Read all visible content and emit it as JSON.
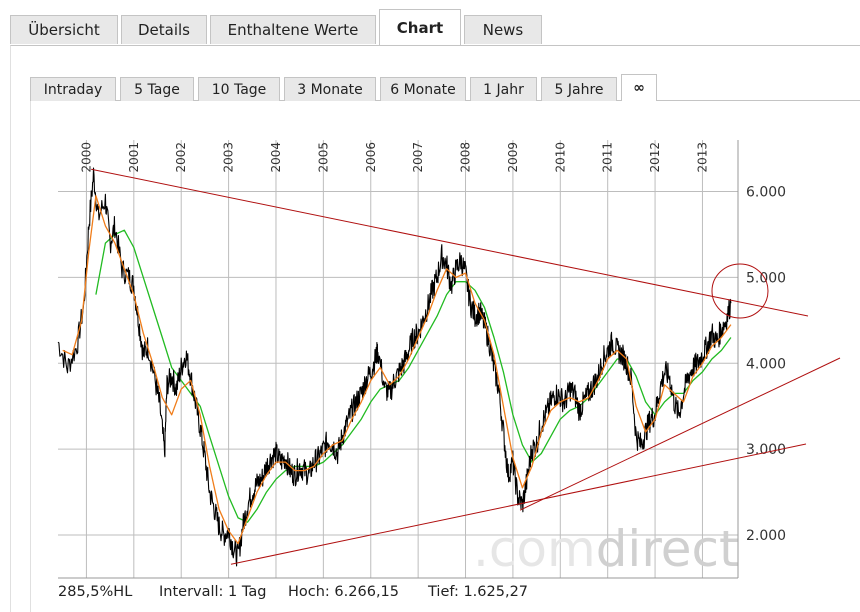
{
  "tabs": [
    {
      "label": "Übersicht",
      "active": false
    },
    {
      "label": "Details",
      "active": false
    },
    {
      "label": "Enthaltene Werte",
      "active": false
    },
    {
      "label": "Chart",
      "active": true
    },
    {
      "label": "News",
      "active": false
    }
  ],
  "subtabs": [
    {
      "label": "Intraday",
      "active": false
    },
    {
      "label": "5 Tage",
      "active": false
    },
    {
      "label": "10 Tage",
      "active": false
    },
    {
      "label": "3 Monate",
      "active": false
    },
    {
      "label": "6 Monate",
      "active": false
    },
    {
      "label": "1 Jahr",
      "active": false
    },
    {
      "label": "5 Jahre",
      "active": false
    },
    {
      "label": "∞",
      "active": true
    }
  ],
  "stats": {
    "hl": "285,5%HL",
    "interval": "Intervall: 1 Tag",
    "high": "Hoch:  6.266,15",
    "low": "Tief:  1.625,27"
  },
  "watermark": {
    "light": ".com",
    "dark": "direct"
  },
  "colors": {
    "price": "#000000",
    "ma_short": "#f07d1a",
    "ma_long": "#22bb22",
    "trendline": "#b01010",
    "grid": "#bdbdbd"
  },
  "chart_data": {
    "type": "line",
    "x_labels": [
      "2000",
      "2001",
      "2002",
      "2003",
      "2004",
      "2005",
      "2006",
      "2007",
      "2008",
      "2009",
      "2010",
      "2011",
      "2012",
      "2013"
    ],
    "y_ticks": [
      2000,
      3000,
      4000,
      5000,
      6000
    ],
    "y_tick_labels": [
      "2.000",
      "3.000",
      "4.000",
      "5.000",
      "6.000"
    ],
    "ylim": [
      1500,
      6600
    ],
    "xlim": [
      1999.4,
      2013.75
    ],
    "grid": true,
    "series": [
      {
        "role": "price",
        "points": [
          [
            1999.4,
            4250
          ],
          [
            1999.6,
            3950
          ],
          [
            1999.8,
            4200
          ],
          [
            1999.95,
            4700
          ],
          [
            2000.05,
            5600
          ],
          [
            2000.15,
            6200
          ],
          [
            2000.25,
            5700
          ],
          [
            2000.4,
            5900
          ],
          [
            2000.5,
            5400
          ],
          [
            2000.6,
            5600
          ],
          [
            2000.75,
            5100
          ],
          [
            2000.9,
            5000
          ],
          [
            2001.0,
            4900
          ],
          [
            2001.1,
            4500
          ],
          [
            2001.2,
            4100
          ],
          [
            2001.3,
            4200
          ],
          [
            2001.45,
            3800
          ],
          [
            2001.55,
            3500
          ],
          [
            2001.65,
            2950
          ],
          [
            2001.7,
            3750
          ],
          [
            2001.8,
            3850
          ],
          [
            2001.9,
            3700
          ],
          [
            2002.0,
            3950
          ],
          [
            2002.1,
            4100
          ],
          [
            2002.2,
            3850
          ],
          [
            2002.3,
            3550
          ],
          [
            2002.4,
            3250
          ],
          [
            2002.5,
            2900
          ],
          [
            2002.6,
            2500
          ],
          [
            2002.7,
            2300
          ],
          [
            2002.8,
            2100
          ],
          [
            2002.9,
            2000
          ],
          [
            2003.0,
            2050
          ],
          [
            2003.1,
            1850
          ],
          [
            2003.2,
            1750
          ],
          [
            2003.3,
            2100
          ],
          [
            2003.4,
            2350
          ],
          [
            2003.5,
            2500
          ],
          [
            2003.6,
            2600
          ],
          [
            2003.7,
            2650
          ],
          [
            2003.8,
            2800
          ],
          [
            2003.9,
            2900
          ],
          [
            2004.0,
            2950
          ],
          [
            2004.1,
            2850
          ],
          [
            2004.2,
            2900
          ],
          [
            2004.3,
            2750
          ],
          [
            2004.4,
            2700
          ],
          [
            2004.5,
            2800
          ],
          [
            2004.6,
            2750
          ],
          [
            2004.7,
            2700
          ],
          [
            2004.8,
            2850
          ],
          [
            2004.9,
            2900
          ],
          [
            2005.0,
            3000
          ],
          [
            2005.1,
            3100
          ],
          [
            2005.2,
            3050
          ],
          [
            2005.3,
            2950
          ],
          [
            2005.4,
            3150
          ],
          [
            2005.5,
            3300
          ],
          [
            2005.6,
            3450
          ],
          [
            2005.7,
            3550
          ],
          [
            2005.8,
            3650
          ],
          [
            2005.9,
            3800
          ],
          [
            2006.0,
            3900
          ],
          [
            2006.1,
            4050
          ],
          [
            2006.15,
            4150
          ],
          [
            2006.3,
            3700
          ],
          [
            2006.4,
            3650
          ],
          [
            2006.5,
            3800
          ],
          [
            2006.6,
            3900
          ],
          [
            2006.7,
            4000
          ],
          [
            2006.8,
            4150
          ],
          [
            2006.9,
            4300
          ],
          [
            2007.0,
            4350
          ],
          [
            2007.1,
            4500
          ],
          [
            2007.2,
            4650
          ],
          [
            2007.3,
            4850
          ],
          [
            2007.4,
            5000
          ],
          [
            2007.5,
            5250
          ],
          [
            2007.6,
            5150
          ],
          [
            2007.7,
            4900
          ],
          [
            2007.8,
            5100
          ],
          [
            2007.9,
            5200
          ],
          [
            2008.0,
            5050
          ],
          [
            2008.1,
            4700
          ],
          [
            2008.2,
            4550
          ],
          [
            2008.3,
            4600
          ],
          [
            2008.4,
            4450
          ],
          [
            2008.5,
            4250
          ],
          [
            2008.6,
            3950
          ],
          [
            2008.7,
            3700
          ],
          [
            2008.8,
            3200
          ],
          [
            2008.9,
            2700
          ],
          [
            2009.0,
            2850
          ],
          [
            2009.1,
            2450
          ],
          [
            2009.2,
            2350
          ],
          [
            2009.3,
            2650
          ],
          [
            2009.4,
            3000
          ],
          [
            2009.5,
            3050
          ],
          [
            2009.6,
            3300
          ],
          [
            2009.7,
            3400
          ],
          [
            2009.8,
            3550
          ],
          [
            2009.9,
            3650
          ],
          [
            2010.0,
            3600
          ],
          [
            2010.1,
            3550
          ],
          [
            2010.2,
            3700
          ],
          [
            2010.3,
            3650
          ],
          [
            2010.4,
            3450
          ],
          [
            2010.5,
            3550
          ],
          [
            2010.6,
            3650
          ],
          [
            2010.7,
            3750
          ],
          [
            2010.8,
            3850
          ],
          [
            2010.9,
            4050
          ],
          [
            2011.0,
            4150
          ],
          [
            2011.1,
            4250
          ],
          [
            2011.2,
            4150
          ],
          [
            2011.3,
            4100
          ],
          [
            2011.4,
            4000
          ],
          [
            2011.5,
            3800
          ],
          [
            2011.6,
            3150
          ],
          [
            2011.7,
            3050
          ],
          [
            2011.8,
            3200
          ],
          [
            2011.9,
            3350
          ],
          [
            2012.0,
            3400
          ],
          [
            2012.1,
            3700
          ],
          [
            2012.2,
            3900
          ],
          [
            2012.3,
            3850
          ],
          [
            2012.4,
            3550
          ],
          [
            2012.5,
            3400
          ],
          [
            2012.6,
            3650
          ],
          [
            2012.7,
            3850
          ],
          [
            2012.8,
            3950
          ],
          [
            2012.9,
            4000
          ],
          [
            2013.0,
            4100
          ],
          [
            2013.1,
            4200
          ],
          [
            2013.2,
            4350
          ],
          [
            2013.3,
            4250
          ],
          [
            2013.4,
            4400
          ],
          [
            2013.5,
            4500
          ],
          [
            2013.6,
            4700
          ]
        ]
      },
      {
        "role": "ma_short",
        "points": [
          [
            1999.5,
            4150
          ],
          [
            1999.7,
            4100
          ],
          [
            1999.9,
            4500
          ],
          [
            2000.05,
            5300
          ],
          [
            2000.2,
            5950
          ],
          [
            2000.4,
            5600
          ],
          [
            2000.6,
            5400
          ],
          [
            2000.8,
            5100
          ],
          [
            2001.0,
            4800
          ],
          [
            2001.2,
            4350
          ],
          [
            2001.4,
            4000
          ],
          [
            2001.6,
            3600
          ],
          [
            2001.8,
            3400
          ],
          [
            2002.0,
            3700
          ],
          [
            2002.2,
            3800
          ],
          [
            2002.4,
            3400
          ],
          [
            2002.6,
            2800
          ],
          [
            2002.8,
            2300
          ],
          [
            2003.0,
            2050
          ],
          [
            2003.2,
            1900
          ],
          [
            2003.4,
            2200
          ],
          [
            2003.6,
            2500
          ],
          [
            2003.8,
            2700
          ],
          [
            2004.0,
            2850
          ],
          [
            2004.2,
            2850
          ],
          [
            2004.4,
            2750
          ],
          [
            2004.6,
            2750
          ],
          [
            2004.8,
            2800
          ],
          [
            2005.0,
            2950
          ],
          [
            2005.2,
            3050
          ],
          [
            2005.4,
            3100
          ],
          [
            2005.6,
            3350
          ],
          [
            2005.8,
            3550
          ],
          [
            2006.0,
            3800
          ],
          [
            2006.2,
            3950
          ],
          [
            2006.4,
            3750
          ],
          [
            2006.6,
            3850
          ],
          [
            2006.8,
            4050
          ],
          [
            2007.0,
            4300
          ],
          [
            2007.2,
            4550
          ],
          [
            2007.4,
            4850
          ],
          [
            2007.6,
            5100
          ],
          [
            2007.8,
            5000
          ],
          [
            2008.0,
            5050
          ],
          [
            2008.2,
            4700
          ],
          [
            2008.4,
            4500
          ],
          [
            2008.6,
            4100
          ],
          [
            2008.8,
            3500
          ],
          [
            2009.0,
            2900
          ],
          [
            2009.2,
            2550
          ],
          [
            2009.4,
            2800
          ],
          [
            2009.6,
            3200
          ],
          [
            2009.8,
            3450
          ],
          [
            2010.0,
            3550
          ],
          [
            2010.2,
            3600
          ],
          [
            2010.4,
            3550
          ],
          [
            2010.6,
            3600
          ],
          [
            2010.8,
            3800
          ],
          [
            2011.0,
            4050
          ],
          [
            2011.2,
            4150
          ],
          [
            2011.4,
            4050
          ],
          [
            2011.6,
            3500
          ],
          [
            2011.8,
            3200
          ],
          [
            2012.0,
            3350
          ],
          [
            2012.2,
            3750
          ],
          [
            2012.4,
            3650
          ],
          [
            2012.6,
            3550
          ],
          [
            2012.8,
            3850
          ],
          [
            2013.0,
            4000
          ],
          [
            2013.2,
            4200
          ],
          [
            2013.4,
            4300
          ],
          [
            2013.6,
            4450
          ]
        ]
      },
      {
        "role": "ma_long",
        "points": [
          [
            2000.2,
            4800
          ],
          [
            2000.4,
            5400
          ],
          [
            2000.6,
            5500
          ],
          [
            2000.8,
            5550
          ],
          [
            2001.0,
            5350
          ],
          [
            2001.2,
            5000
          ],
          [
            2001.4,
            4650
          ],
          [
            2001.6,
            4300
          ],
          [
            2001.8,
            3950
          ],
          [
            2002.0,
            3800
          ],
          [
            2002.2,
            3650
          ],
          [
            2002.4,
            3500
          ],
          [
            2002.6,
            3150
          ],
          [
            2002.8,
            2800
          ],
          [
            2003.0,
            2450
          ],
          [
            2003.2,
            2200
          ],
          [
            2003.4,
            2150
          ],
          [
            2003.6,
            2300
          ],
          [
            2003.8,
            2500
          ],
          [
            2004.0,
            2650
          ],
          [
            2004.2,
            2750
          ],
          [
            2004.4,
            2800
          ],
          [
            2004.6,
            2800
          ],
          [
            2004.8,
            2800
          ],
          [
            2005.0,
            2850
          ],
          [
            2005.2,
            2950
          ],
          [
            2005.4,
            3050
          ],
          [
            2005.6,
            3200
          ],
          [
            2005.8,
            3350
          ],
          [
            2006.0,
            3550
          ],
          [
            2006.2,
            3700
          ],
          [
            2006.4,
            3750
          ],
          [
            2006.6,
            3800
          ],
          [
            2006.8,
            3950
          ],
          [
            2007.0,
            4150
          ],
          [
            2007.2,
            4350
          ],
          [
            2007.4,
            4550
          ],
          [
            2007.6,
            4800
          ],
          [
            2007.8,
            4950
          ],
          [
            2008.0,
            4950
          ],
          [
            2008.2,
            4850
          ],
          [
            2008.4,
            4650
          ],
          [
            2008.6,
            4300
          ],
          [
            2008.8,
            3900
          ],
          [
            2009.0,
            3400
          ],
          [
            2009.2,
            3050
          ],
          [
            2009.4,
            2850
          ],
          [
            2009.6,
            2950
          ],
          [
            2009.8,
            3150
          ],
          [
            2010.0,
            3350
          ],
          [
            2010.2,
            3450
          ],
          [
            2010.4,
            3500
          ],
          [
            2010.6,
            3600
          ],
          [
            2010.8,
            3750
          ],
          [
            2011.0,
            3900
          ],
          [
            2011.2,
            4050
          ],
          [
            2011.4,
            4050
          ],
          [
            2011.6,
            3850
          ],
          [
            2011.8,
            3550
          ],
          [
            2012.0,
            3400
          ],
          [
            2012.2,
            3550
          ],
          [
            2012.4,
            3650
          ],
          [
            2012.6,
            3650
          ],
          [
            2012.8,
            3800
          ],
          [
            2013.0,
            3900
          ],
          [
            2013.2,
            4050
          ],
          [
            2013.4,
            4150
          ],
          [
            2013.6,
            4300
          ]
        ]
      }
    ]
  }
}
